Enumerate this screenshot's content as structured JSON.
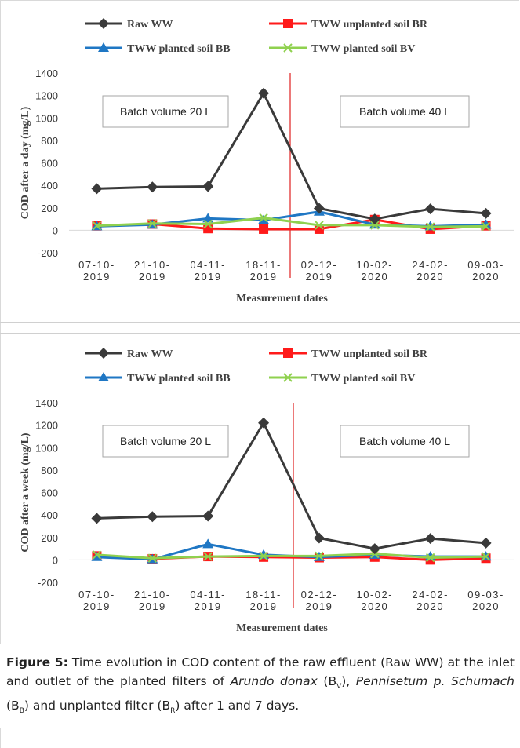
{
  "chart_data": [
    {
      "type": "line",
      "ylabel": "COD  after a day (mg/L)",
      "xlabel": "Measurement dates",
      "ylim": [
        -200,
        1400
      ],
      "yticks": [
        -200,
        0,
        200,
        400,
        600,
        800,
        1000,
        1200,
        1400
      ],
      "categories": [
        "07-10-2019",
        "21-10-2019",
        "04-11-2019",
        "18-11-2019",
        "02-12-2019",
        "10-02-2020",
        "24-02-2020",
        "09-03-2020"
      ],
      "annotations": [
        "Batch volume 20 L",
        "Batch volume 40 L"
      ],
      "legend_position": "top",
      "series": [
        {
          "name": "Raw WW",
          "color": "#3a3a3a",
          "marker": "diamond",
          "values": [
            370,
            385,
            390,
            1220,
            195,
            100,
            190,
            150
          ]
        },
        {
          "name": "TWW unplanted soil BR",
          "color": "#ff1a1a",
          "marker": "square",
          "values": [
            40,
            55,
            15,
            10,
            10,
            95,
            10,
            40
          ]
        },
        {
          "name": "TWW planted soil BB",
          "color": "#1f77c4",
          "marker": "triangle",
          "values": [
            35,
            50,
            105,
            90,
            165,
            50,
            35,
            50
          ]
        },
        {
          "name": "TWW planted soil BV",
          "color": "#8fd14f",
          "marker": "x",
          "values": [
            40,
            60,
            55,
            110,
            45,
            45,
            30,
            35
          ]
        }
      ]
    },
    {
      "type": "line",
      "ylabel": "COD after a week (mg/L)",
      "xlabel": "Measurement dates",
      "ylim": [
        -200,
        1400
      ],
      "yticks": [
        -200,
        0,
        200,
        400,
        600,
        800,
        1000,
        1200,
        1400
      ],
      "categories": [
        "07-10-2019",
        "21-10-2019",
        "04-11-2019",
        "18-11-2019",
        "02-12-2019",
        "10-02-2020",
        "24-02-2020",
        "09-03-2020"
      ],
      "annotations": [
        "Batch volume 20 L",
        "Batch volume 40 L"
      ],
      "legend_position": "top",
      "series": [
        {
          "name": "Raw WW",
          "color": "#3a3a3a",
          "marker": "diamond",
          "values": [
            370,
            385,
            390,
            1220,
            195,
            100,
            190,
            150
          ]
        },
        {
          "name": "TWW unplanted soil BR",
          "color": "#ff1a1a",
          "marker": "square",
          "values": [
            35,
            10,
            30,
            25,
            20,
            25,
            0,
            15
          ]
        },
        {
          "name": "TWW planted soil BB",
          "color": "#1f77c4",
          "marker": "triangle",
          "values": [
            25,
            5,
            140,
            45,
            25,
            45,
            30,
            30
          ]
        },
        {
          "name": "TWW planted soil BV",
          "color": "#8fd14f",
          "marker": "x",
          "values": [
            45,
            15,
            30,
            35,
            35,
            55,
            20,
            30
          ]
        }
      ]
    }
  ],
  "caption": {
    "label": "Figure 5:",
    "text_1": "  Time evolution in COD content of the raw effluent (Raw WW) at the inlet and outlet of the planted filters of ",
    "species_1": "Arundo donax",
    "text_2": " (B",
    "sub_v": "V",
    "text_3": "), ",
    "species_2": "Pennisetum p. Schumach",
    "text_4": " (B",
    "sub_b": "B",
    "text_5": ") and unplanted filter (B",
    "sub_r": "R",
    "text_6": ") after 1 and 7 days."
  }
}
